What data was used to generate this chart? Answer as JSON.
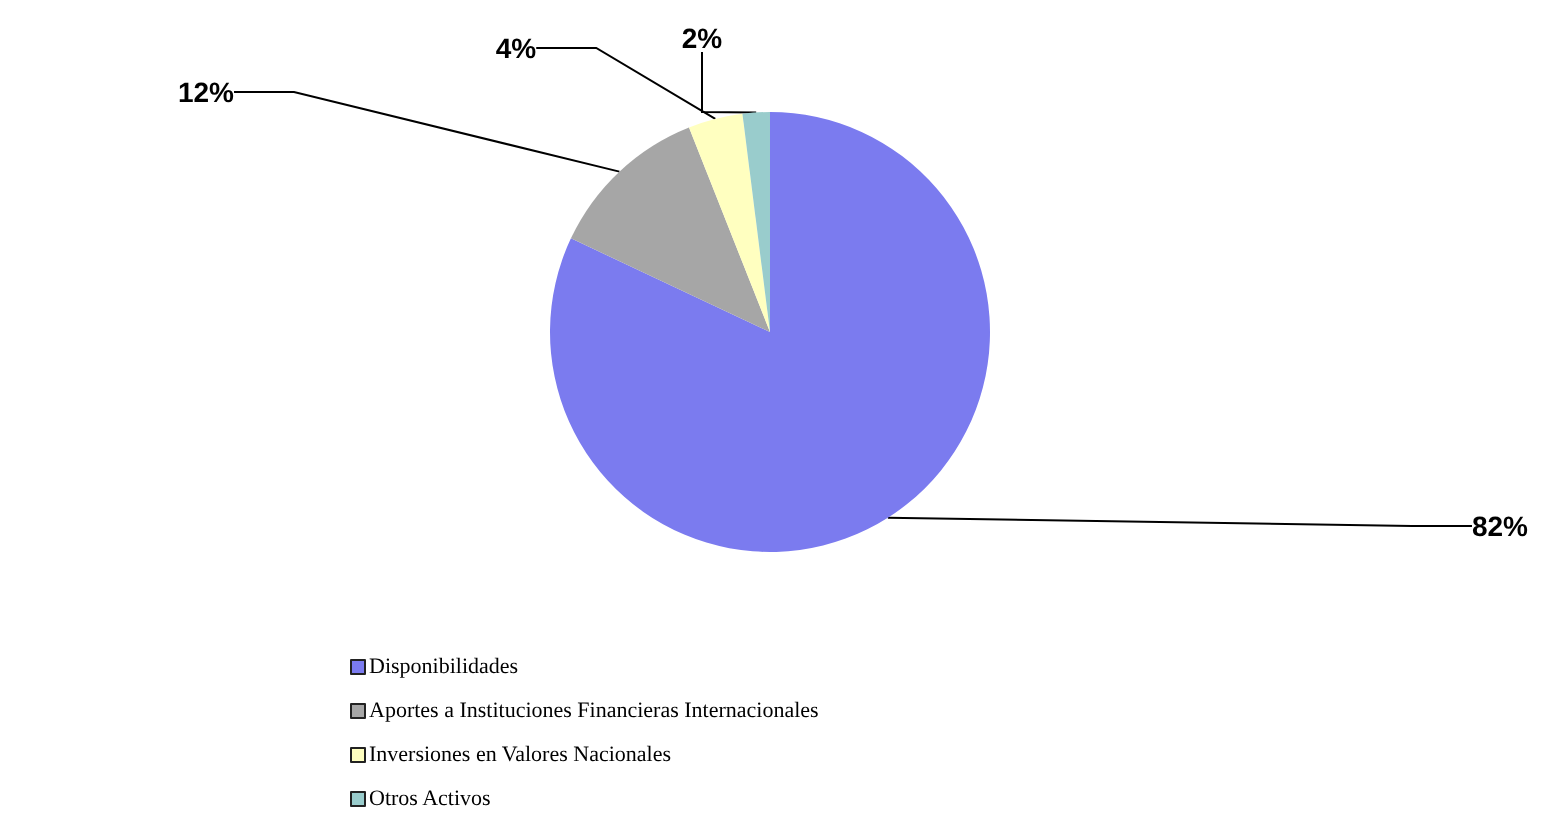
{
  "chart_data": {
    "type": "pie",
    "categories": [
      "Disponibilidades",
      "Aportes a Instituciones Financieras Internacionales",
      "Inversiones en Valores Nacionales",
      "Otros Activos"
    ],
    "values": [
      82,
      12,
      4,
      2
    ],
    "colors": [
      "#7b7bef",
      "#a6a6a6",
      "#ffffc0",
      "#99cccc"
    ],
    "value_labels": [
      "82%",
      "12%",
      "4%",
      "2%"
    ],
    "legend": "bottom left"
  }
}
